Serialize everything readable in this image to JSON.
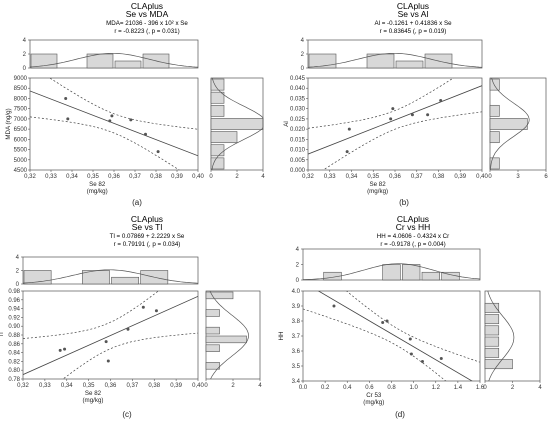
{
  "chart_data": [
    {
      "type": "scatter",
      "panel_label": "(a)",
      "title": "CLAplus",
      "subtitle": "Se vs MDA",
      "equation": "MDA= 21036 - 396 x 10² x Se",
      "stats": "r = -0.8223 (, p = 0.031)",
      "xlabel": "Se 82",
      "xunit": "(mg/kg)",
      "ylabel": "MDA (ng/g)",
      "xlim": [
        0.32,
        0.4
      ],
      "ylim": [
        4500,
        9000
      ],
      "x_ticks": [
        "0,32",
        "0,33",
        "0,34",
        "0,35",
        "0,36",
        "0,37",
        "0,38",
        "0,39",
        "0,40"
      ],
      "y_ticks": [
        "4500",
        "5000",
        "5500",
        "6000",
        "6500",
        "7000",
        "7500",
        "8000",
        "8500",
        "9000"
      ],
      "x": [
        0.337,
        0.338,
        0.358,
        0.359,
        0.368,
        0.375,
        0.381
      ],
      "y": [
        8000,
        7000,
        6900,
        7150,
        6950,
        6250,
        5400
      ],
      "fit": {
        "intercept": 21036,
        "slope": -39600
      },
      "top_hist": {
        "ylim": [
          0,
          4
        ],
        "ticks": [
          "0",
          "2",
          "4"
        ],
        "counts": [
          2,
          0,
          2,
          1,
          2,
          0
        ],
        "range": [
          0.32,
          0.4
        ]
      },
      "right_hist": {
        "xlim": [
          0,
          4
        ],
        "ticks": [
          "0",
          "2",
          "4"
        ],
        "counts": [
          1,
          1,
          2,
          4,
          1,
          1,
          1
        ]
      }
    },
    {
      "type": "scatter",
      "panel_label": "(b)",
      "title": "CLAplus",
      "subtitle": "Se vs Al",
      "equation": "Al = -0.1261 + 0.41836 x Se",
      "stats": "r = 0.83645 (, p = 0.019)",
      "xlabel": "Se 82",
      "xunit": "(mg/kg)",
      "ylabel": "Al",
      "xlim": [
        0.32,
        0.4
      ],
      "ylim": [
        0.0,
        0.045
      ],
      "x_ticks": [
        "0,32",
        "0,33",
        "0,34",
        "0,35",
        "0,36",
        "0,37",
        "0,38",
        "0,39",
        "0,40"
      ],
      "y_ticks": [
        "0.000",
        "0.005",
        "0.010",
        "0.015",
        "0.020",
        "0.025",
        "0.030",
        "0.035",
        "0.040",
        "0.045"
      ],
      "x": [
        0.338,
        0.339,
        0.358,
        0.359,
        0.368,
        0.375,
        0.381
      ],
      "y": [
        0.009,
        0.02,
        0.025,
        0.03,
        0.027,
        0.027,
        0.034
      ],
      "fit": {
        "intercept": -0.1261,
        "slope": 0.41836
      },
      "top_hist": {
        "ylim": [
          0,
          4
        ],
        "ticks": [
          "0",
          "2",
          "4"
        ],
        "counts": [
          2,
          0,
          2,
          1,
          2,
          0
        ],
        "range": [
          0.32,
          0.4
        ]
      },
      "right_hist": {
        "xlim": [
          0,
          6
        ],
        "ticks": [
          "0",
          "3",
          "6"
        ],
        "counts": [
          1,
          0,
          1,
          4,
          1,
          0,
          1
        ]
      }
    },
    {
      "type": "scatter",
      "panel_label": "(c)",
      "title": "CLAplus",
      "subtitle": "Se vs Tl",
      "equation": "Tl = 0.07869 + 2.2229 x Se",
      "stats": "r = 0.79191 (, p = 0.034)",
      "xlabel": "Se 82",
      "xunit": "(mg/kg)",
      "ylabel": "Tl",
      "xlim": [
        0.32,
        0.4
      ],
      "ylim": [
        0.78,
        0.98
      ],
      "x_ticks": [
        "0,32",
        "0,33",
        "0,34",
        "0,35",
        "0,36",
        "0,37",
        "0,38",
        "0,39",
        "0,40"
      ],
      "y_ticks": [
        "0.78",
        "0.80",
        "0.82",
        "0.84",
        "0.86",
        "0.88",
        "0.90",
        "0.92",
        "0.94",
        "0.96",
        "0.98"
      ],
      "x": [
        0.337,
        0.339,
        0.358,
        0.359,
        0.368,
        0.375,
        0.381
      ],
      "y": [
        0.845,
        0.848,
        0.865,
        0.821,
        0.893,
        0.943,
        0.935
      ],
      "fit": {
        "intercept": 0.07869,
        "slope": 2.2229
      },
      "top_hist": {
        "ylim": [
          0,
          4
        ],
        "ticks": [
          "0",
          "2",
          "4"
        ],
        "counts": [
          2,
          0,
          2,
          1,
          2,
          0
        ],
        "range": [
          0.32,
          0.4
        ]
      },
      "right_hist": {
        "xlim": [
          0,
          4
        ],
        "ticks": [
          "0",
          "2",
          "4"
        ],
        "counts": [
          0,
          1,
          0,
          1,
          3,
          1,
          0,
          1,
          0,
          2
        ]
      }
    },
    {
      "type": "scatter",
      "panel_label": "(d)",
      "title": "CLAplus",
      "subtitle": "Cr vs HH",
      "equation": "HH = 4.0606 - 0.4324 x Cr",
      "stats": "r = -0.9178 (, p = 0.004)",
      "xlabel": "Cr 53",
      "xunit": "(mg/kg)",
      "ylabel": "HH",
      "xlim": [
        0.0,
        1.6
      ],
      "ylim": [
        3.4,
        4.0
      ],
      "x_ticks": [
        "0.0",
        "0.2",
        "0.4",
        "0.6",
        "0.8",
        "1.0",
        "1.2",
        "1.4",
        "1.6"
      ],
      "y_ticks": [
        "3.4",
        "3.5",
        "3.6",
        "3.7",
        "3.8",
        "3.9",
        "4.0"
      ],
      "x": [
        0.28,
        0.72,
        0.76,
        0.97,
        0.98,
        1.08,
        1.25
      ],
      "y": [
        3.9,
        3.79,
        3.8,
        3.68,
        3.58,
        3.53,
        3.55
      ],
      "fit": {
        "intercept": 4.0606,
        "slope": -0.4324
      },
      "top_hist": {
        "ylim": [
          0,
          4
        ],
        "ticks": [
          "0",
          "2",
          "4"
        ],
        "counts": [
          0,
          1,
          0,
          0,
          2,
          2,
          1,
          1,
          0
        ],
        "range": [
          0.0,
          1.6
        ]
      },
      "right_hist": {
        "xlim": [
          0,
          4
        ],
        "ticks": [
          "0",
          "2",
          "4"
        ],
        "counts": [
          0,
          2,
          1,
          1,
          1,
          1,
          1,
          0
        ]
      }
    }
  ]
}
